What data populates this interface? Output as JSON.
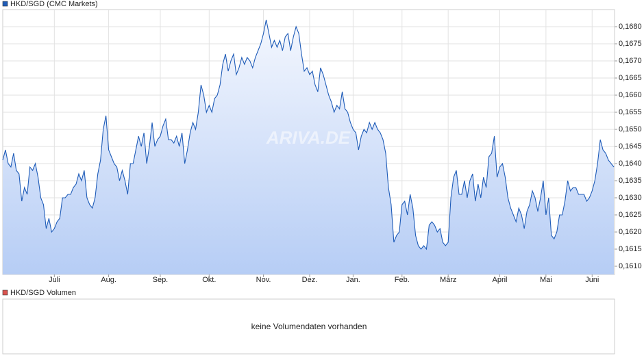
{
  "chart_data": {
    "type": "line",
    "legend": "HKD/SGD (CMC Markets)",
    "watermark": "ARIVA.DE",
    "categories": [
      null,
      null,
      null,
      null,
      null,
      null,
      null,
      null,
      null,
      null,
      null,
      null,
      null,
      null,
      null,
      null,
      null,
      null,
      null,
      "Juli",
      null,
      null,
      null,
      null,
      null,
      null,
      null,
      null,
      null,
      null,
      null,
      null,
      null,
      null,
      null,
      null,
      null,
      null,
      null,
      "Aug.",
      null,
      null,
      null,
      null,
      null,
      null,
      null,
      null,
      null,
      null,
      null,
      null,
      null,
      null,
      null,
      null,
      null,
      null,
      "Sep.",
      null,
      null,
      null,
      null,
      null,
      null,
      null,
      null,
      null,
      null,
      null,
      null,
      null,
      null,
      null,
      null,
      null,
      "Okt.",
      null,
      null,
      null,
      null,
      null,
      null,
      null,
      null,
      null,
      null,
      null,
      null,
      null,
      null,
      null,
      null,
      null,
      null,
      null,
      "Nov.",
      null,
      null,
      null,
      null,
      null,
      null,
      null,
      null,
      null,
      null,
      null,
      null,
      null,
      null,
      null,
      null,
      "Dez.",
      null,
      null,
      null,
      null,
      null,
      null,
      null,
      null,
      null,
      null,
      null,
      null,
      null,
      null,
      null,
      "Jan.",
      null,
      null,
      null,
      null,
      null,
      null,
      null,
      null,
      null,
      null,
      null,
      null,
      null,
      null,
      null,
      null,
      null,
      "Feb.",
      null,
      null,
      null,
      null,
      null,
      null,
      null,
      null,
      null,
      null,
      null,
      null,
      null,
      null,
      null,
      null,
      "März",
      null,
      null,
      null,
      null,
      null,
      null,
      null,
      null,
      null,
      null,
      null,
      null,
      null,
      null,
      null,
      null,
      null,
      null,
      "April",
      null,
      null,
      null,
      null,
      null,
      null,
      null,
      null,
      null,
      null,
      null,
      null,
      null,
      null,
      null,
      null,
      "Mai",
      null,
      null,
      null,
      null,
      null,
      null,
      null,
      null,
      null,
      null,
      null,
      null,
      null,
      null,
      null,
      null,
      "Juni",
      null,
      null,
      null,
      null,
      null,
      null,
      null,
      null
    ],
    "series": [
      {
        "name": "HKD/SGD (CMC Markets)",
        "color": "#1f5cb8",
        "values": [
          0.1641,
          0.1644,
          0.164,
          0.1639,
          0.1643,
          0.1638,
          0.1637,
          0.1629,
          0.1633,
          0.1631,
          0.1639,
          0.1638,
          0.164,
          0.1636,
          0.163,
          0.1628,
          0.1621,
          0.1624,
          0.162,
          0.1621,
          0.1623,
          0.1624,
          0.163,
          0.163,
          0.1631,
          0.1631,
          0.1633,
          0.1634,
          0.1637,
          0.1635,
          0.1638,
          0.163,
          0.1628,
          0.1627,
          0.163,
          0.1637,
          0.1641,
          0.165,
          0.1654,
          0.1644,
          0.1642,
          0.164,
          0.1639,
          0.1635,
          0.1638,
          0.1635,
          0.1631,
          0.164,
          0.164,
          0.1644,
          0.1648,
          0.1645,
          0.1649,
          0.164,
          0.1645,
          0.1652,
          0.1645,
          0.1647,
          0.1648,
          0.1651,
          0.1653,
          0.1647,
          0.1647,
          0.1646,
          0.1648,
          0.1645,
          0.1649,
          0.164,
          0.1644,
          0.1649,
          0.1652,
          0.165,
          0.1655,
          0.1663,
          0.166,
          0.1655,
          0.1657,
          0.1655,
          0.1659,
          0.166,
          0.1663,
          0.1669,
          0.1672,
          0.1667,
          0.167,
          0.1672,
          0.1666,
          0.1668,
          0.1671,
          0.1669,
          0.1671,
          0.167,
          0.1668,
          0.1671,
          0.1673,
          0.1675,
          0.1678,
          0.1682,
          0.1678,
          0.1674,
          0.1676,
          0.1674,
          0.1676,
          0.1673,
          0.1677,
          0.1678,
          0.1673,
          0.1677,
          0.168,
          0.1678,
          0.1672,
          0.1667,
          0.1668,
          0.1666,
          0.1667,
          0.1663,
          0.1661,
          0.1668,
          0.1666,
          0.1663,
          0.166,
          0.1658,
          0.1655,
          0.1657,
          0.1656,
          0.1661,
          0.1656,
          0.1655,
          0.1652,
          0.165,
          0.1649,
          0.1644,
          0.1648,
          0.165,
          0.1649,
          0.1652,
          0.165,
          0.1652,
          0.165,
          0.1649,
          0.1647,
          0.1643,
          0.1633,
          0.1628,
          0.1617,
          0.1619,
          0.162,
          0.1628,
          0.1629,
          0.1625,
          0.1631,
          0.1627,
          0.1619,
          0.1616,
          0.1615,
          0.1616,
          0.1615,
          0.1622,
          0.1623,
          0.1622,
          0.162,
          0.1621,
          0.1617,
          0.1616,
          0.1617,
          0.163,
          0.1636,
          0.1638,
          0.1631,
          0.1631,
          0.1635,
          0.163,
          0.1635,
          0.1637,
          0.1629,
          0.1634,
          0.163,
          0.1636,
          0.1633,
          0.1642,
          0.1643,
          0.1648,
          0.1636,
          0.1639,
          0.164,
          0.1636,
          0.163,
          0.1627,
          0.1625,
          0.1623,
          0.1627,
          0.1625,
          0.1621,
          0.1626,
          0.1628,
          0.1632,
          0.163,
          0.1626,
          0.163,
          0.1635,
          0.1625,
          0.163,
          0.1619,
          0.1618,
          0.162,
          0.1625,
          0.1625,
          0.1629,
          0.1635,
          0.1632,
          0.1633,
          0.1633,
          0.1631,
          0.1631,
          0.1631,
          0.1629,
          0.163,
          0.1632,
          0.1635,
          0.164,
          0.1647,
          0.1644,
          0.1643,
          0.1641,
          0.164,
          0.1639
        ]
      }
    ],
    "ylim": [
      0.16076,
      0.1685
    ],
    "yticks": [
      {
        "value": 0.161,
        "label": "0,1610"
      },
      {
        "value": 0.1615,
        "label": "0,1615"
      },
      {
        "value": 0.162,
        "label": "0,1620"
      },
      {
        "value": 0.1625,
        "label": "0,1625"
      },
      {
        "value": 0.163,
        "label": "0,1630"
      },
      {
        "value": 0.1635,
        "label": "0,1635"
      },
      {
        "value": 0.164,
        "label": "0,1640"
      },
      {
        "value": 0.1645,
        "label": "0,1645"
      },
      {
        "value": 0.165,
        "label": "0,1650"
      },
      {
        "value": 0.1655,
        "label": "0,1655"
      },
      {
        "value": 0.166,
        "label": "0,1660"
      },
      {
        "value": 0.1665,
        "label": "0,1665"
      },
      {
        "value": 0.167,
        "label": "0,1670"
      },
      {
        "value": 0.1675,
        "label": "0,1675"
      },
      {
        "value": 0.168,
        "label": "0,1680"
      }
    ],
    "grid": true
  },
  "volume_panel": {
    "legend": "HKD/SGD Volumen",
    "color": "#d9534f",
    "message": "keine Volumendaten vorhanden"
  }
}
